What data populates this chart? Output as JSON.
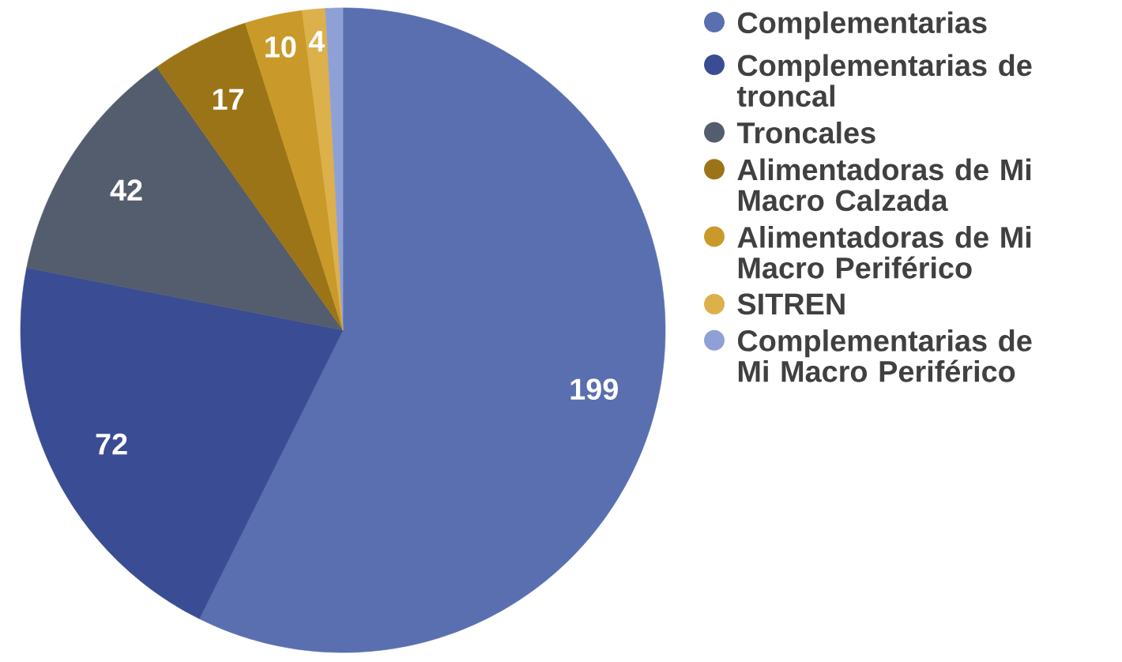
{
  "chart_data": {
    "type": "pie",
    "categories": [
      "Complementarias",
      "Complementarias de troncal",
      "Troncales",
      "Alimentadoras de Mi Macro Calzada",
      "Alimentadoras de Mi Macro Periférico",
      "SITREN",
      "Complementarias de Mi Macro Periférico"
    ],
    "values": [
      199,
      72,
      42,
      17,
      10,
      4,
      3
    ],
    "value_labels": [
      "199",
      "72",
      "42",
      "17",
      "10",
      "4",
      null
    ],
    "colors": [
      "#5a6fb0",
      "#3a4c94",
      "#545d6e",
      "#9c7418",
      "#c99a2a",
      "#dcb04a",
      "#8ea0d6"
    ],
    "legend": "right"
  }
}
